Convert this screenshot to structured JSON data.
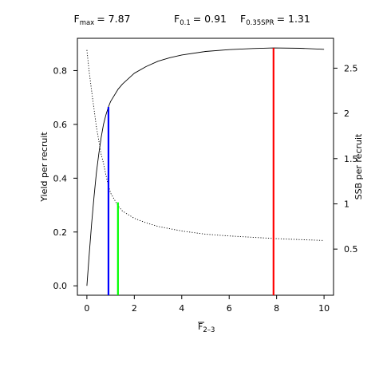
{
  "chart_data": {
    "type": "line",
    "title": {
      "fmax": {
        "base": "F",
        "sub": "max",
        "value": "= 7.87"
      },
      "f01": {
        "base": "F",
        "sub": "0.1",
        "value": "= 0.91"
      },
      "f035": {
        "base": "F",
        "sub": "0.35SPR",
        "value": "= 1.31"
      }
    },
    "xlabel": {
      "base": "F",
      "sub": "2–3"
    },
    "ylabel": "Yield per recruit",
    "y2label": "SSB per recruit",
    "xlim": [
      -0.4,
      10.4
    ],
    "ylim": [
      -0.035,
      0.92
    ],
    "y2lim": [
      -0.01,
      2.83
    ],
    "xticks": [
      "0",
      "2",
      "4",
      "6",
      "8",
      "10"
    ],
    "yticks": [
      "0.0",
      "0.2",
      "0.4",
      "0.6",
      "0.8"
    ],
    "y2ticks": [
      "0.5",
      "1",
      "1.5",
      "2",
      "2.5"
    ],
    "series": [
      {
        "axis": "left",
        "style": "solid",
        "color": "#000000",
        "x": [
          0,
          0.1,
          0.2,
          0.3,
          0.4,
          0.5,
          0.6,
          0.7,
          0.8,
          0.91,
          1.0,
          1.31,
          1.5,
          2.0,
          2.5,
          3.0,
          3.5,
          4.0,
          5.0,
          6.0,
          7.0,
          7.87,
          9.0,
          10.0
        ],
        "y": [
          0.0,
          0.12,
          0.23,
          0.33,
          0.42,
          0.49,
          0.55,
          0.6,
          0.635,
          0.665,
          0.685,
          0.73,
          0.75,
          0.79,
          0.815,
          0.835,
          0.848,
          0.858,
          0.871,
          0.878,
          0.882,
          0.884,
          0.883,
          0.879
        ]
      },
      {
        "axis": "right",
        "style": "dotted",
        "color": "#000000",
        "x": [
          0,
          0.1,
          0.2,
          0.3,
          0.4,
          0.5,
          0.6,
          0.7,
          0.8,
          0.91,
          1.0,
          1.31,
          1.5,
          2.0,
          2.5,
          3.0,
          4.0,
          5.0,
          6.0,
          7.0,
          8.0,
          9.0,
          10.0
        ],
        "y": [
          2.7,
          2.45,
          2.25,
          2.05,
          1.85,
          1.7,
          1.55,
          1.45,
          1.32,
          1.2,
          1.12,
          0.98,
          0.92,
          0.84,
          0.79,
          0.75,
          0.7,
          0.665,
          0.645,
          0.63,
          0.615,
          0.605,
          0.595
        ]
      }
    ],
    "reference_lines": [
      {
        "x": 0.91,
        "y": 0.665,
        "color": "#0000ff"
      },
      {
        "x": 1.31,
        "y": 0.31,
        "color": "#00ff00"
      },
      {
        "x": 7.87,
        "y": 0.884,
        "color": "#ff0000"
      }
    ]
  }
}
